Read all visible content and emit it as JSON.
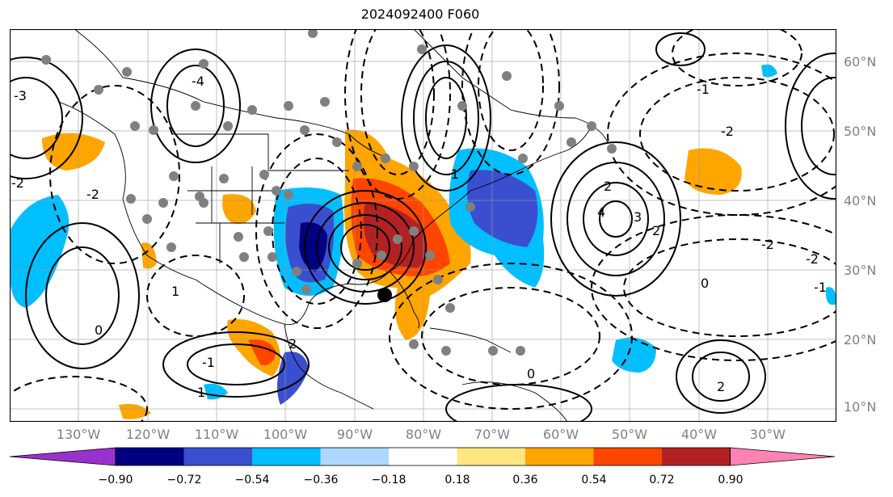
{
  "title": "2024092400 F060",
  "lat_labels": [
    "60°N",
    "50°N",
    "40°N",
    "30°N",
    "20°N",
    "10°N"
  ],
  "lon_labels": [
    "130°W",
    "120°W",
    "110°W",
    "100°W",
    "90°W",
    "80°W",
    "70°W",
    "60°W",
    "50°W",
    "40°W",
    "30°W"
  ],
  "colorbar": {
    "ticks": [
      "−0.90",
      "−0.72",
      "−0.54",
      "−0.36",
      "−0.18",
      "0.18",
      "0.36",
      "0.54",
      "0.72",
      "0.90"
    ],
    "colors": [
      "#9932cc",
      "#000080",
      "#3a4fcf",
      "#00bfff",
      "#add8ff",
      "#ffffff",
      "#ffe680",
      "#ffa500",
      "#ff4500",
      "#b22222",
      "#ff82b4"
    ]
  },
  "contour_labels": [
    "-2",
    "-2",
    "-3",
    "-4",
    "2",
    "4",
    "3",
    "2",
    "0",
    "-1",
    "1",
    "-1",
    "-2",
    "0",
    "2",
    "-1",
    "-2",
    "1",
    "0",
    "-2",
    "-1",
    "2"
  ],
  "marker": "storm-center-dot"
}
